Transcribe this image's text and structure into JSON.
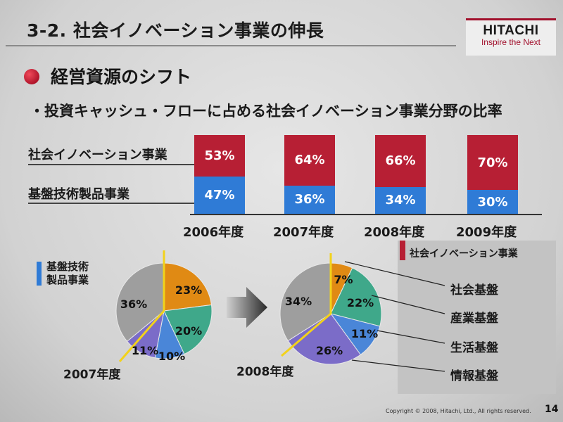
{
  "header": {
    "title": "3-2. 社会イノベーション事業の伸長",
    "logo_brand": "HITACHI",
    "logo_tagline": "Inspire the Next"
  },
  "section": {
    "title": "経営資源のシフト",
    "bullet": "・投資キャッシュ・フローに占める社会イノベーション事業分野の比率"
  },
  "row_labels": {
    "social": "社会イノベーション事業",
    "base": "基盤技術製品事業"
  },
  "chart_data": [
    {
      "type": "bar",
      "stacked": true,
      "categories": [
        "2006年度",
        "2007年度",
        "2008年度",
        "2009年度"
      ],
      "series": [
        {
          "name": "社会イノベーション事業",
          "values": [
            53,
            64,
            66,
            70
          ],
          "labels": [
            "53%",
            "64%",
            "66%",
            "70%"
          ],
          "color": "#b71f34"
        },
        {
          "name": "基盤技術製品事業",
          "values": [
            47,
            36,
            34,
            30
          ],
          "labels": [
            "47%",
            "36%",
            "34%",
            "30%"
          ],
          "color": "#2f7bd6"
        }
      ],
      "ylim": [
        0,
        100
      ]
    },
    {
      "type": "pie",
      "title": "2007年度",
      "slices": [
        {
          "label": "23%",
          "value": 23,
          "color": "#e08a14"
        },
        {
          "label": "20%",
          "value": 20,
          "color": "#3fa88a"
        },
        {
          "label": "10%",
          "value": 10,
          "color": "#4a86d8"
        },
        {
          "label": "11%",
          "value": 11,
          "color": "#7b6cc8"
        },
        {
          "label": "36%",
          "value": 36,
          "color": "#9e9e9e"
        }
      ]
    },
    {
      "type": "pie",
      "title": "2008年度",
      "slices": [
        {
          "label": "7%",
          "value": 7,
          "color": "#e08a14"
        },
        {
          "label": "22%",
          "value": 22,
          "color": "#3fa88a"
        },
        {
          "label": "11%",
          "value": 11,
          "color": "#4a86d8"
        },
        {
          "label": "26%",
          "value": 26,
          "color": "#7b6cc8"
        },
        {
          "label": "34%",
          "value": 34,
          "color": "#9e9e9e"
        }
      ]
    }
  ],
  "pie_legend": {
    "base_label_line1": "基盤技術",
    "base_label_line2": "製品事業",
    "social_title": "社会イノベーション事業",
    "categories": [
      "社会基盤",
      "産業基盤",
      "生活基盤",
      "情報基盤"
    ]
  },
  "footer": {
    "copyright": "Copyright © 2008, Hitachi, Ltd., All rights reserved.",
    "page": "14"
  },
  "colors": {
    "accent_red": "#b71f34",
    "accent_blue": "#2f7bd6",
    "highlight_yellow": "#f2d21b"
  }
}
